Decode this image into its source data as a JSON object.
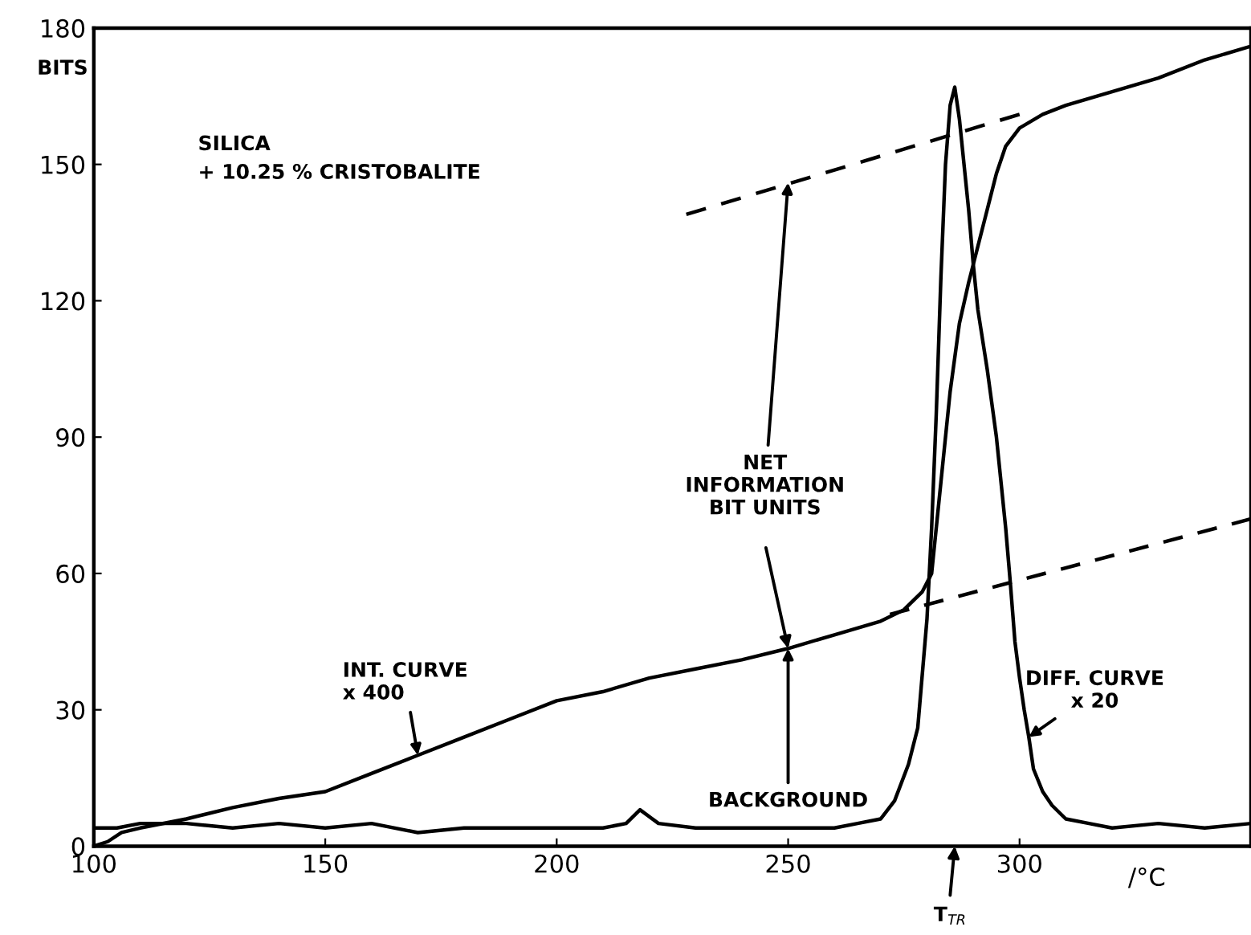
{
  "chart_data": {
    "type": "line",
    "xlabel": "/°C",
    "ylabel": "BITS",
    "xlim": [
      100,
      350
    ],
    "ylim": [
      0,
      180
    ],
    "xticks": [
      100,
      150,
      200,
      250,
      300
    ],
    "yticks": [
      0,
      30,
      60,
      90,
      120,
      150,
      180
    ],
    "grid": false,
    "series": [
      {
        "color": "#000000",
        "line_style": "solid",
        "x": [
          100,
          103,
          106,
          110,
          120,
          130,
          140,
          150,
          160,
          170,
          180,
          190,
          200,
          210,
          220,
          230,
          240,
          250,
          260,
          270,
          275,
          279,
          281,
          283,
          285,
          287,
          289,
          291,
          293,
          295,
          297,
          300,
          305,
          310,
          320,
          330,
          340,
          350
        ],
        "values": [
          0,
          1,
          3,
          4,
          6,
          8.5,
          10.5,
          12,
          16,
          20,
          24,
          28,
          32,
          34,
          37,
          39,
          41,
          43.5,
          46.5,
          49.5,
          52,
          56,
          60,
          80,
          100,
          115,
          124,
          132,
          140,
          148,
          154,
          158,
          161,
          163,
          166,
          169,
          173,
          176
        ]
      },
      {
        "color": "#000000",
        "line_style": "solid",
        "x": [
          100,
          105,
          110,
          120,
          130,
          140,
          150,
          160,
          170,
          180,
          190,
          200,
          210,
          215,
          218,
          222,
          230,
          240,
          250,
          260,
          265,
          270,
          273,
          276,
          278,
          280,
          281,
          282,
          283,
          284,
          285,
          286,
          287,
          288,
          289,
          290,
          291,
          293,
          295,
          296,
          297,
          298,
          299,
          300,
          301,
          302,
          303,
          305,
          307,
          310,
          315,
          320,
          330,
          340,
          350
        ],
        "values": [
          4,
          4,
          5,
          5,
          4,
          5,
          4,
          5,
          3,
          4,
          4,
          4,
          4,
          5,
          8,
          5,
          4,
          4,
          4,
          4,
          5,
          6,
          10,
          18,
          26,
          50,
          70,
          95,
          125,
          150,
          163,
          167,
          160,
          150,
          140,
          128,
          118,
          105,
          90,
          80,
          70,
          58,
          45,
          37,
          30,
          24,
          17,
          12,
          9,
          6,
          5,
          4,
          5,
          4,
          5
        ]
      },
      {
        "color": "#000000",
        "line_style": "dashed",
        "x": [
          228,
          300
        ],
        "values": [
          139,
          161
        ]
      },
      {
        "color": "#000000",
        "line_style": "dashed",
        "x": [
          272,
          350
        ],
        "values": [
          51,
          72
        ]
      }
    ],
    "annotations": [
      "SILICA\n+ 10.25 % CRISTOBALITE",
      {
        "text": "NET\nINFORMATION\nBIT UNITS",
        "x": 250,
        "y": 146
      },
      {
        "text": "INT. CURVE\nx 400",
        "x": 170,
        "y": 20
      },
      {
        "text": "BACKGROUND",
        "x": 250,
        "y": 43.5
      },
      {
        "text": "DIFF. CURVE\nx 20",
        "x": 302,
        "y": 24
      },
      "T$_{TR}$"
    ]
  }
}
